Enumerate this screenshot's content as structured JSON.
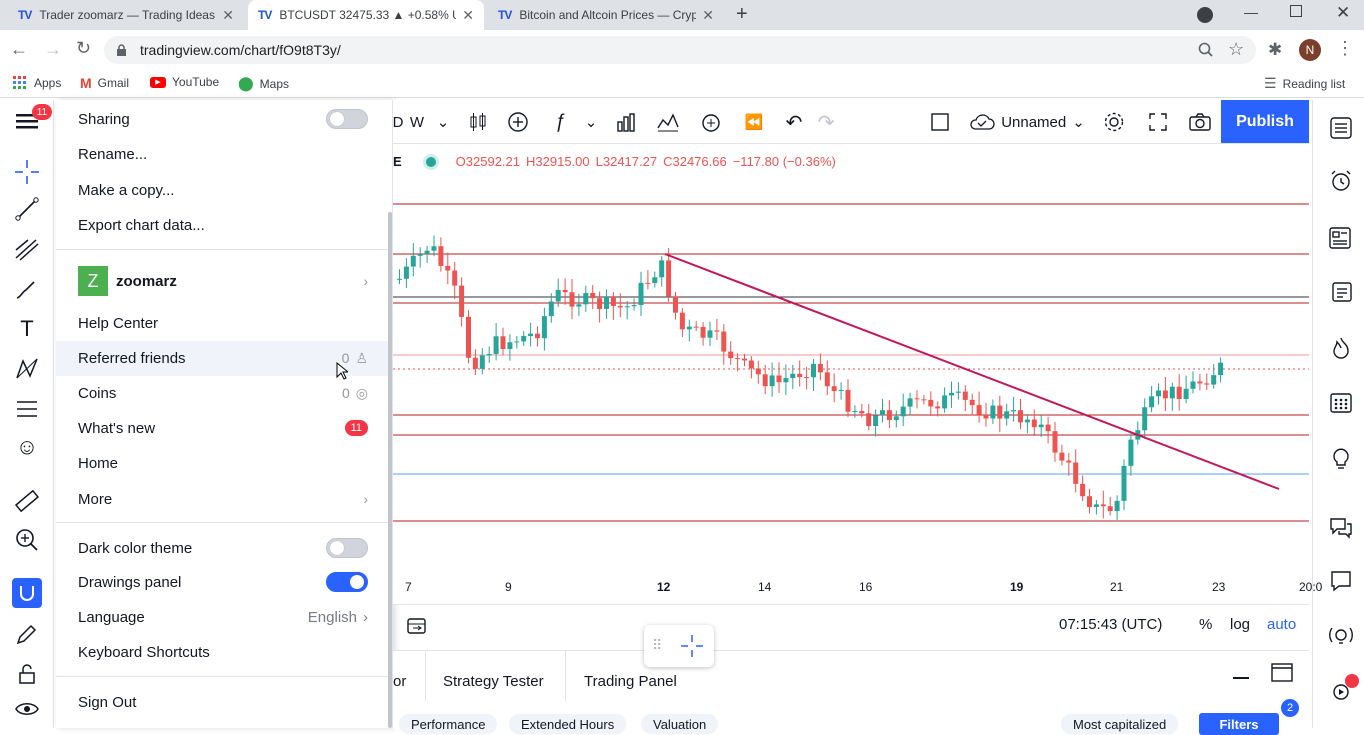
{
  "browser": {
    "tabs": [
      {
        "favicon": "TV",
        "title": "Trader zoomarz — Trading Ideas"
      },
      {
        "favicon": "TV",
        "title": "BTCUSDT 32475.33 ▲ +0.58% Un"
      },
      {
        "favicon": "TV",
        "title": "Bitcoin and Altcoin Prices — Cryp"
      }
    ],
    "new_tab": "+",
    "url": "tradingview.com/chart/fO9t8T3y/",
    "profile_initial": "N",
    "bookmarks": [
      "Apps",
      "Gmail",
      "YouTube",
      "Maps"
    ],
    "reading_list": "Reading list"
  },
  "tradingview": {
    "menu_badge": "11",
    "menu": {
      "sharing": "Sharing",
      "rename": "Rename...",
      "copy": "Make a copy...",
      "export": "Export chart data...",
      "user_initial": "Z",
      "username": "zoomarz",
      "help": "Help Center",
      "referred": "Referred friends",
      "referred_count": "0",
      "coins": "Coins",
      "coins_count": "0",
      "whats_new": "What's new",
      "whats_new_badge": "11",
      "home": "Home",
      "more": "More",
      "dark_theme": "Dark color theme",
      "drawings_panel": "Drawings panel",
      "language": "Language",
      "language_value": "English",
      "shortcuts": "Keyboard Shortcuts",
      "sign_out": "Sign Out"
    },
    "toggles": {
      "sharing": false,
      "dark_theme": false,
      "drawings_panel": true
    },
    "toolbar": {
      "interval": "W",
      "layout_name": "Unnamed",
      "publish": "Publish"
    },
    "legend": {
      "symbol_tail": "E",
      "open": "O32592.21",
      "high": "H32915.00",
      "low": "L32417.27",
      "close": "C32476.66",
      "change": "−117.80 (−0.36%)"
    },
    "time_labels": [
      "7",
      "9",
      "12",
      "14",
      "16",
      "19",
      "21",
      "23",
      "20:0"
    ],
    "status": {
      "clock": "07:15:43 (UTC)",
      "percent": "%",
      "log": "log",
      "auto": "auto"
    },
    "bottom_tabs": [
      "or",
      "Strategy Tester",
      "Trading Panel"
    ],
    "bottom_pills": [
      "Performance",
      "Extended Hours",
      "Valuation",
      "Most capitalized",
      "Filters"
    ],
    "filters_badge": "2",
    "colors": {
      "accent": "#2962ff",
      "up": "#26a69a",
      "down": "#ef5350",
      "trendline": "#c2185b",
      "hline": "#b71c1c"
    }
  }
}
